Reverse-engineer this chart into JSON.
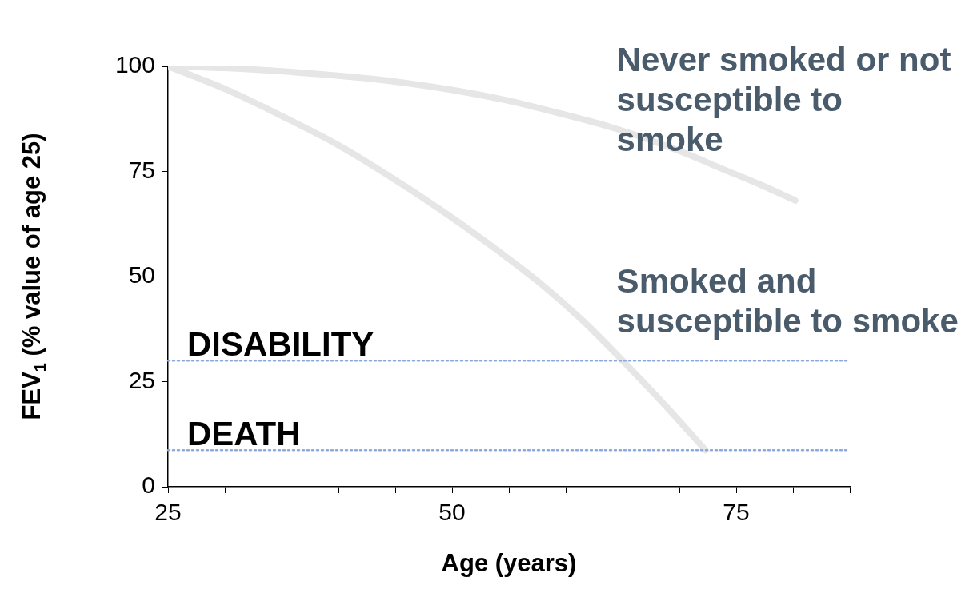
{
  "chart_data": {
    "type": "line",
    "xlabel": "Age (years)",
    "ylabel": "FEV$_{1}$ (% value of age 25)",
    "xlim": [
      25,
      85
    ],
    "xticks": [
      25,
      {
        "value": 30,
        "label": null
      },
      {
        "value": 35,
        "label": null
      },
      {
        "value": 40,
        "label": null
      },
      {
        "value": 45,
        "label": null
      },
      50,
      {
        "value": 55,
        "label": null
      },
      {
        "value": 60,
        "label": null
      },
      {
        "value": 65,
        "label": null
      },
      {
        "value": 70,
        "label": null
      },
      75,
      {
        "value": 80,
        "label": null
      },
      {
        "value": 85,
        "label": null
      }
    ],
    "ylim": [
      0,
      100
    ],
    "yticks": [
      0,
      25,
      50,
      75,
      100
    ],
    "grid": false,
    "legend": false,
    "marker": "none",
    "line_style": "solid",
    "series": [
      {
        "name": "Never smoked or not susceptible to smoke",
        "color": "#e6e6e6",
        "x": [
          25,
          30,
          36.1,
          43,
          50,
          55,
          59.9,
          64,
          67.8,
          71,
          73.7,
          77,
          80.2
        ],
        "values": [
          100,
          99.6,
          98.6,
          97,
          94.4,
          91.8,
          88.5,
          85.5,
          82.1,
          78.8,
          75.7,
          72,
          68.1
        ]
      },
      {
        "name": "Smoked and susceptible to smoke",
        "color": "#e6e6e6",
        "x": [
          25,
          30.2,
          35,
          40.1,
          45,
          50,
          54,
          57.9,
          61.5,
          65,
          68.7,
          72.3
        ],
        "values": [
          100,
          94.4,
          88.2,
          81.1,
          73,
          64,
          56.2,
          48.1,
          39.5,
          30,
          19.5,
          8.7
        ]
      }
    ],
    "ref_lines": [
      {
        "axis": "y",
        "value": 30,
        "label": "DISABILITY",
        "color": "#8eaadb",
        "line_style": "dotted"
      },
      {
        "axis": "y",
        "value": 8.7,
        "label": "DEATH",
        "color": "#8eaadb",
        "line_style": "dotted"
      }
    ]
  }
}
